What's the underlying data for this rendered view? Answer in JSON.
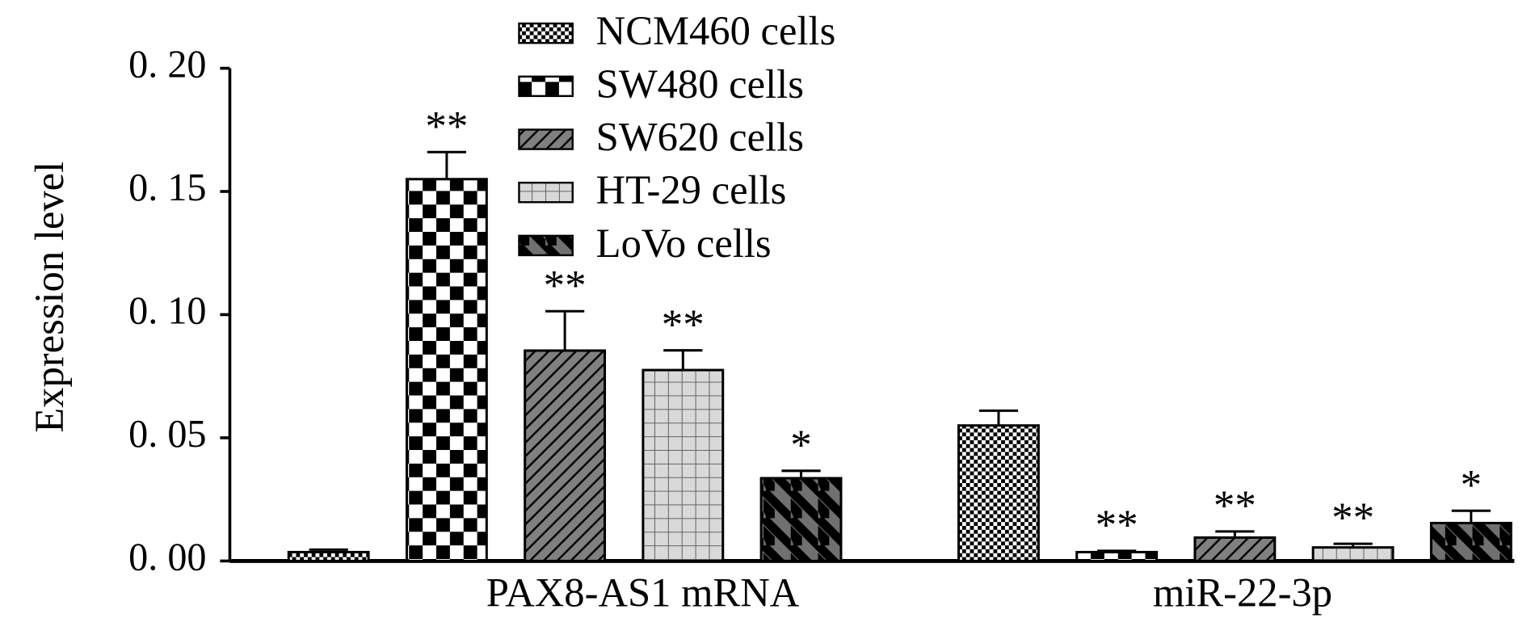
{
  "chart_data": {
    "type": "bar",
    "ylabel": "Expression level",
    "categories": [
      "PAX8-AS1 mRNA",
      "miR-22-3p"
    ],
    "ylim": [
      0,
      0.2
    ],
    "yticks": [
      {
        "value": 0,
        "label": "0. 00"
      },
      {
        "value": 0.05,
        "label": "0. 05"
      },
      {
        "value": 0.1,
        "label": "0. 10"
      },
      {
        "value": 0.15,
        "label": "0. 15"
      },
      {
        "value": 0.2,
        "label": "0. 20"
      }
    ],
    "series": [
      {
        "name": "NCM460 cells",
        "color": "#000000",
        "values": [
          0.0036,
          0.055
        ],
        "errors": [
          0.001,
          0.006
        ],
        "annotations": [
          null,
          null
        ]
      },
      {
        "name": "SW480 cells",
        "color": "#000000",
        "values": [
          0.155,
          0.0036
        ],
        "errors": [
          0.011,
          0.0005
        ],
        "annotations": [
          "**",
          "**"
        ]
      },
      {
        "name": "SW620 cells",
        "color": "#808080",
        "values": [
          0.0854,
          0.0095
        ],
        "errors": [
          0.016,
          0.0025
        ],
        "annotations": [
          "**",
          "**"
        ]
      },
      {
        "name": "HT-29 cells",
        "color": "#d9d9d9",
        "values": [
          0.0775,
          0.0055
        ],
        "errors": [
          0.008,
          0.0015
        ],
        "annotations": [
          "**",
          "**"
        ]
      },
      {
        "name": "LoVo cells",
        "color": "#707070",
        "values": [
          0.0336,
          0.0154
        ],
        "errors": [
          0.003,
          0.005
        ],
        "annotations": [
          "*",
          "*"
        ]
      }
    ]
  }
}
